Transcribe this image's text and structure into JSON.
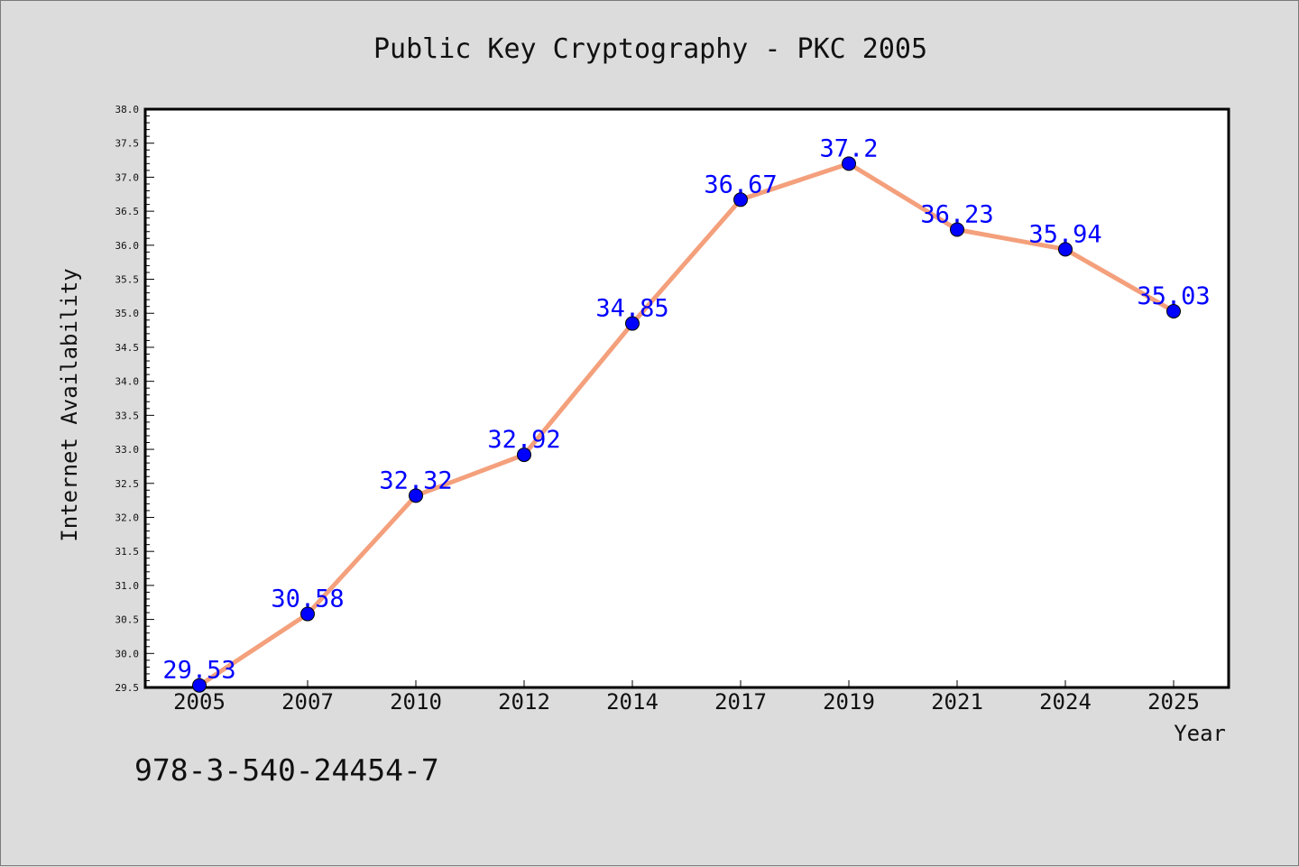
{
  "chart_data": {
    "type": "line",
    "title": "Public Key Cryptography - PKC 2005",
    "xlabel": "Year",
    "ylabel": "Internet Availability",
    "categories": [
      "2005",
      "2007",
      "2010",
      "2012",
      "2014",
      "2017",
      "2019",
      "2021",
      "2024",
      "2025"
    ],
    "series": [
      {
        "values": [
          29.53,
          30.58,
          32.32,
          32.92,
          34.85,
          36.67,
          37.2,
          36.23,
          35.94,
          35.03
        ],
        "labels": [
          "29.53",
          "30.58",
          "32.32",
          "32.92",
          "34.85",
          "36.67",
          "37.2",
          "36.23",
          "35.94",
          "35.03"
        ],
        "line_color": "#f4a07c",
        "marker_color": "#0000ff"
      }
    ],
    "ylim": [
      29.5,
      38.0
    ],
    "yticks": [
      "29.5",
      "30.0",
      "30.5",
      "31.0",
      "31.5",
      "32.0",
      "32.5",
      "33.0",
      "33.5",
      "34.0",
      "34.5",
      "35.0",
      "35.5",
      "36.0",
      "36.5",
      "37.0",
      "37.5",
      "38.0"
    ],
    "grid": false,
    "annotation": "978-3-540-24454-7"
  },
  "colors": {
    "background": "#dcdcdc",
    "plot_background": "#ffffff",
    "axis": "#000000",
    "label_text": "#0000ff"
  }
}
